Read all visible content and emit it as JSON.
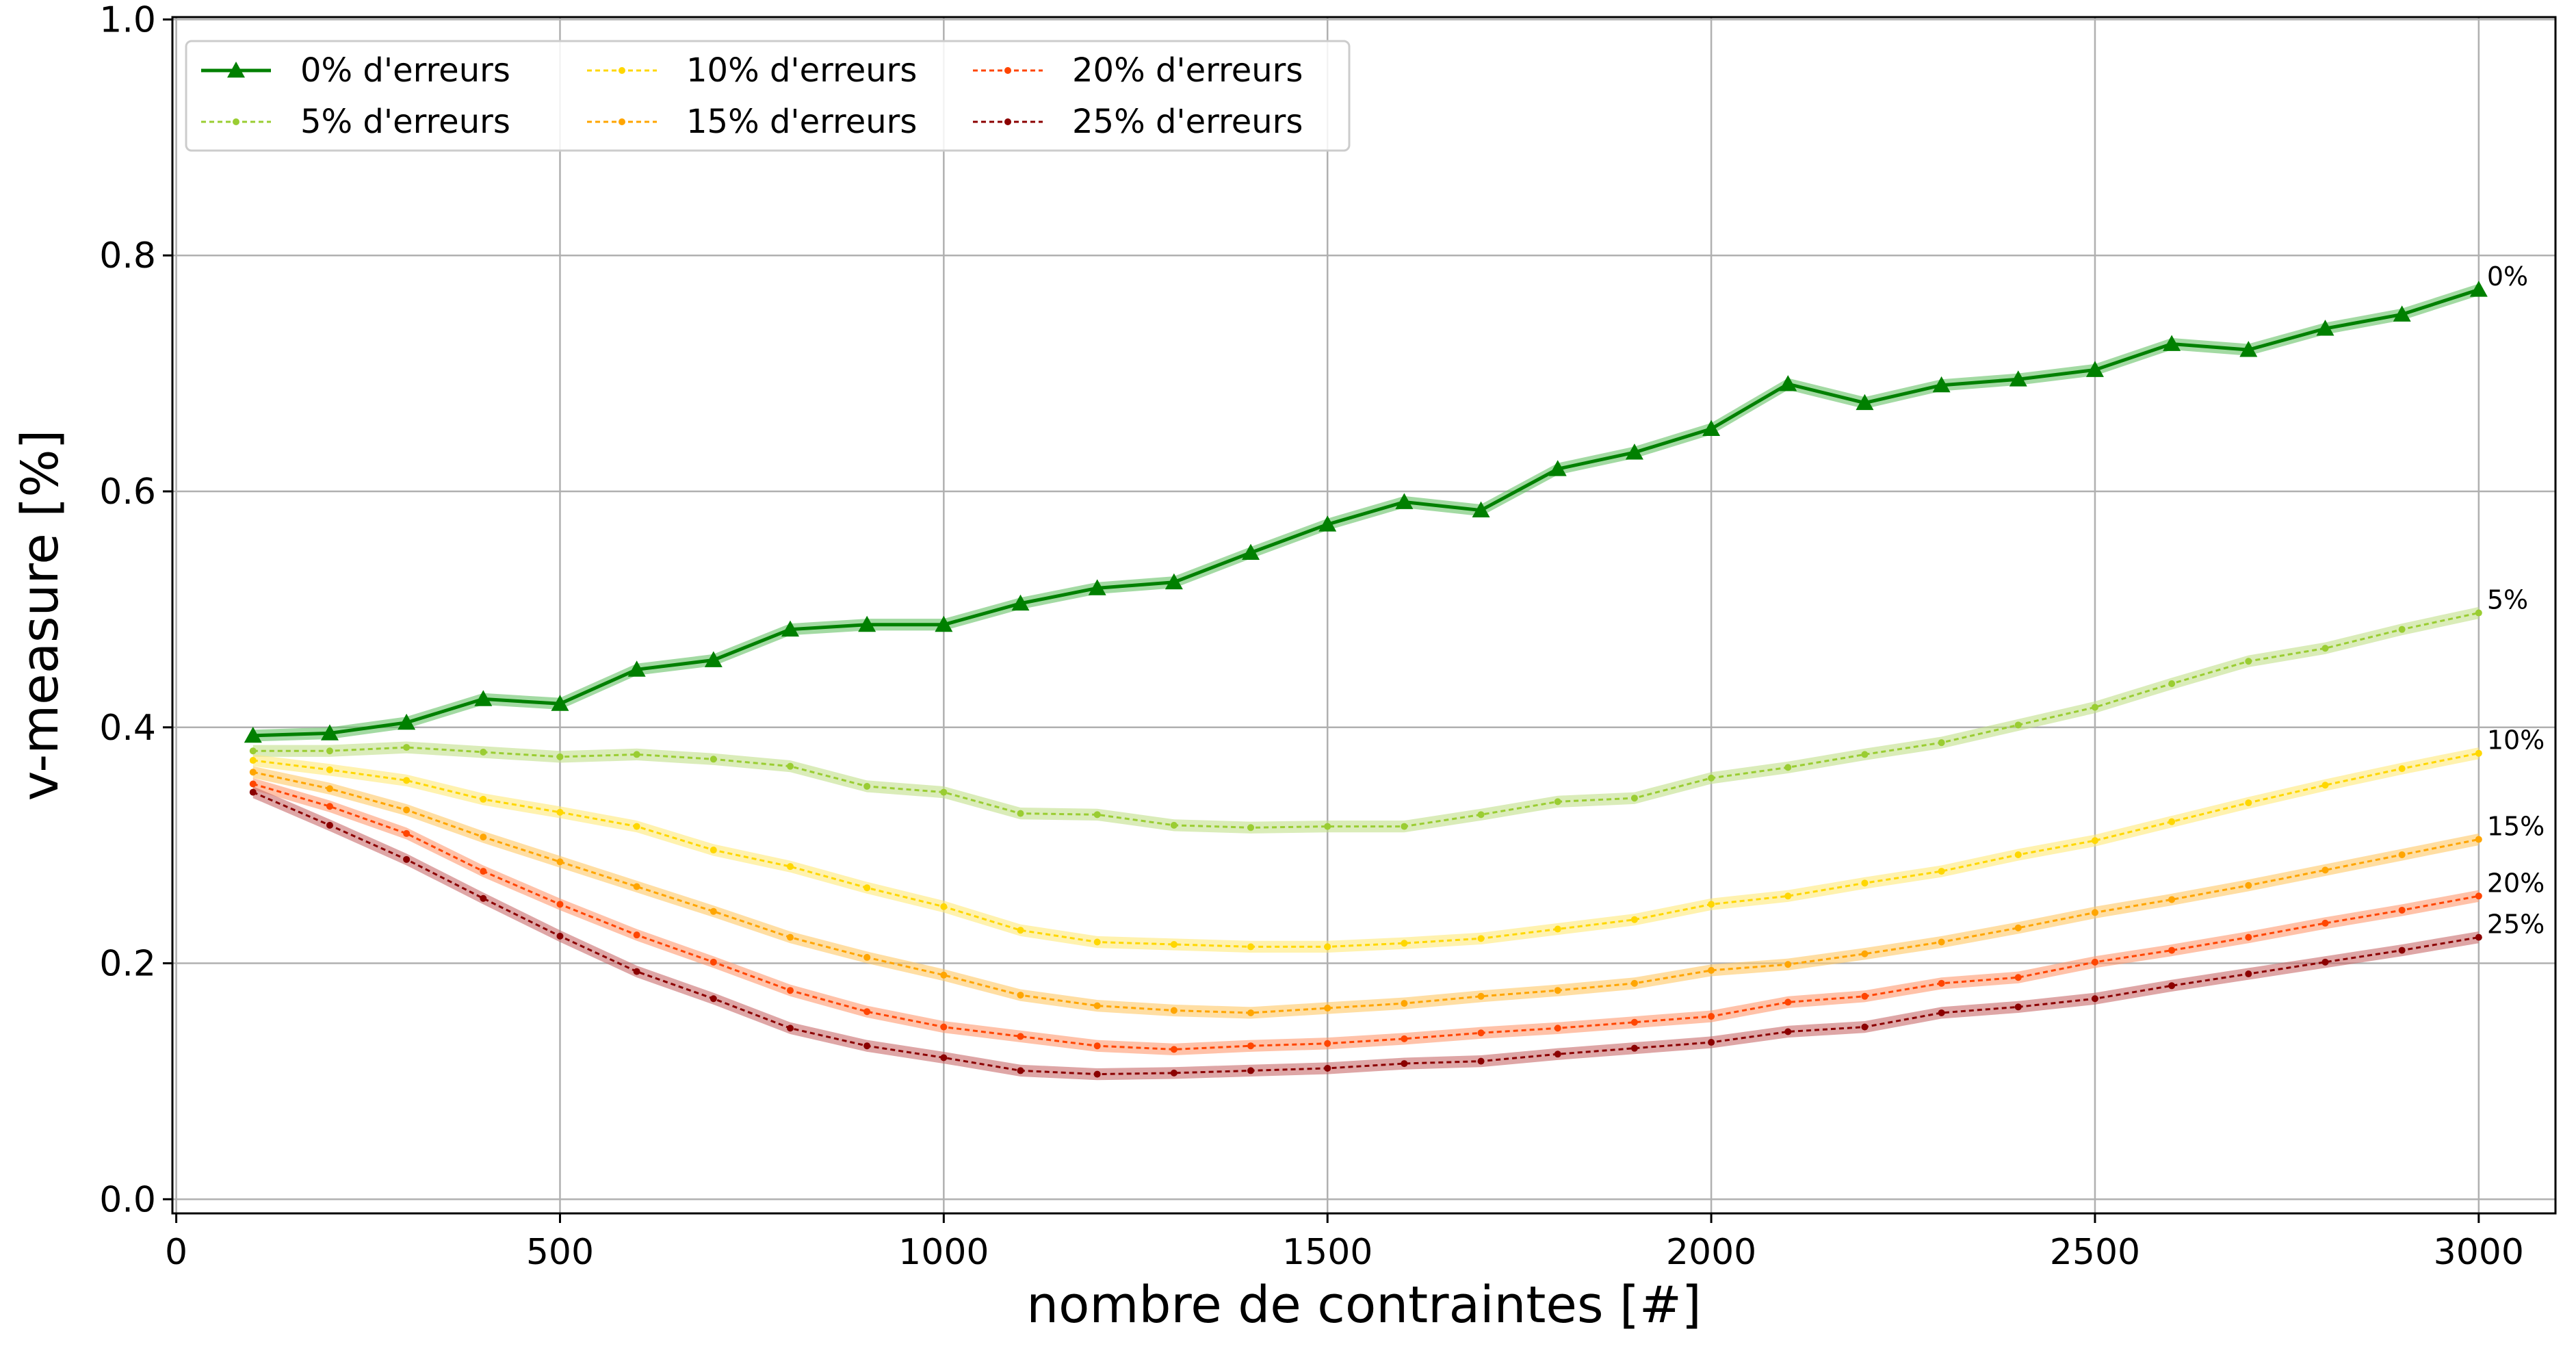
{
  "chart_data": {
    "type": "line",
    "xlabel": "nombre de contraintes [#]",
    "ylabel": "v-measure [%]",
    "xlim": [
      -5,
      3100
    ],
    "ylim": [
      -0.012,
      1.002
    ],
    "xticks": [
      0,
      500,
      1000,
      1500,
      2000,
      2500,
      3000
    ],
    "xtick_labels": [
      "0",
      "500",
      "1000",
      "1500",
      "2000",
      "2500",
      "3000"
    ],
    "yticks": [
      0.0,
      0.2,
      0.4,
      0.6,
      0.8,
      1.0
    ],
    "ytick_labels": [
      "0.0",
      "0.2",
      "0.4",
      "0.6",
      "0.8",
      "1.0"
    ],
    "grid": true,
    "legend_position": "upper-left",
    "x": [
      100,
      200,
      300,
      400,
      500,
      600,
      700,
      800,
      900,
      1000,
      1100,
      1200,
      1300,
      1400,
      1500,
      1600,
      1700,
      1800,
      1900,
      2000,
      2100,
      2200,
      2300,
      2400,
      2500,
      2600,
      2700,
      2800,
      2900,
      3000
    ],
    "series": [
      {
        "name": "0% d'erreurs",
        "end_label": "0%",
        "color": "#008000",
        "band_color": "#66c266",
        "marker": "triangle",
        "style": "solid",
        "values": [
          0.393,
          0.395,
          0.404,
          0.424,
          0.42,
          0.449,
          0.457,
          0.483,
          0.487,
          0.487,
          0.505,
          0.518,
          0.523,
          0.548,
          0.572,
          0.591,
          0.584,
          0.619,
          0.633,
          0.653,
          0.691,
          0.675,
          0.69,
          0.695,
          0.703,
          0.725,
          0.72,
          0.738,
          0.75,
          0.771
        ]
      },
      {
        "name": "5% d'erreurs",
        "end_label": "5%",
        "color": "#9acd32",
        "band_color": "#c2e08a",
        "marker": "dot",
        "style": "dashed",
        "values": [
          0.38,
          0.38,
          0.383,
          0.379,
          0.375,
          0.377,
          0.373,
          0.367,
          0.35,
          0.345,
          0.327,
          0.326,
          0.317,
          0.315,
          0.316,
          0.316,
          0.326,
          0.337,
          0.34,
          0.357,
          0.366,
          0.377,
          0.387,
          0.402,
          0.417,
          0.437,
          0.456,
          0.467,
          0.483,
          0.497
        ]
      },
      {
        "name": "10% d'erreurs",
        "end_label": "10%",
        "color": "#ffd700",
        "band_color": "#ffe97a",
        "marker": "dot",
        "style": "dashed",
        "values": [
          0.372,
          0.364,
          0.355,
          0.339,
          0.328,
          0.316,
          0.296,
          0.282,
          0.264,
          0.248,
          0.228,
          0.218,
          0.216,
          0.214,
          0.214,
          0.217,
          0.221,
          0.229,
          0.237,
          0.25,
          0.257,
          0.268,
          0.278,
          0.292,
          0.304,
          0.32,
          0.336,
          0.351,
          0.365,
          0.378
        ]
      },
      {
        "name": "15% d'erreurs",
        "end_label": "15%",
        "color": "#ffa500",
        "band_color": "#ffc866",
        "marker": "dot",
        "style": "dashed",
        "values": [
          0.362,
          0.348,
          0.33,
          0.307,
          0.286,
          0.265,
          0.244,
          0.222,
          0.205,
          0.19,
          0.173,
          0.164,
          0.16,
          0.158,
          0.162,
          0.166,
          0.172,
          0.177,
          0.183,
          0.194,
          0.199,
          0.208,
          0.218,
          0.23,
          0.243,
          0.254,
          0.266,
          0.279,
          0.292,
          0.305
        ]
      },
      {
        "name": "20% d'erreurs",
        "end_label": "20%",
        "color": "#ff4500",
        "band_color": "#ff9a70",
        "marker": "dot",
        "style": "dashed",
        "values": [
          0.352,
          0.333,
          0.31,
          0.278,
          0.25,
          0.224,
          0.201,
          0.177,
          0.159,
          0.146,
          0.138,
          0.13,
          0.127,
          0.13,
          0.132,
          0.136,
          0.141,
          0.145,
          0.15,
          0.155,
          0.167,
          0.172,
          0.183,
          0.188,
          0.201,
          0.211,
          0.222,
          0.234,
          0.245,
          0.257
        ]
      },
      {
        "name": "25% d'erreurs",
        "end_label": "25%",
        "color": "#8b0000",
        "band_color": "#c86a6a",
        "marker": "dot",
        "style": "dashed",
        "values": [
          0.345,
          0.317,
          0.288,
          0.255,
          0.223,
          0.193,
          0.17,
          0.145,
          0.13,
          0.12,
          0.109,
          0.106,
          0.107,
          0.109,
          0.111,
          0.115,
          0.117,
          0.123,
          0.128,
          0.133,
          0.142,
          0.146,
          0.158,
          0.163,
          0.17,
          0.181,
          0.191,
          0.201,
          0.211,
          0.222
        ]
      }
    ]
  }
}
